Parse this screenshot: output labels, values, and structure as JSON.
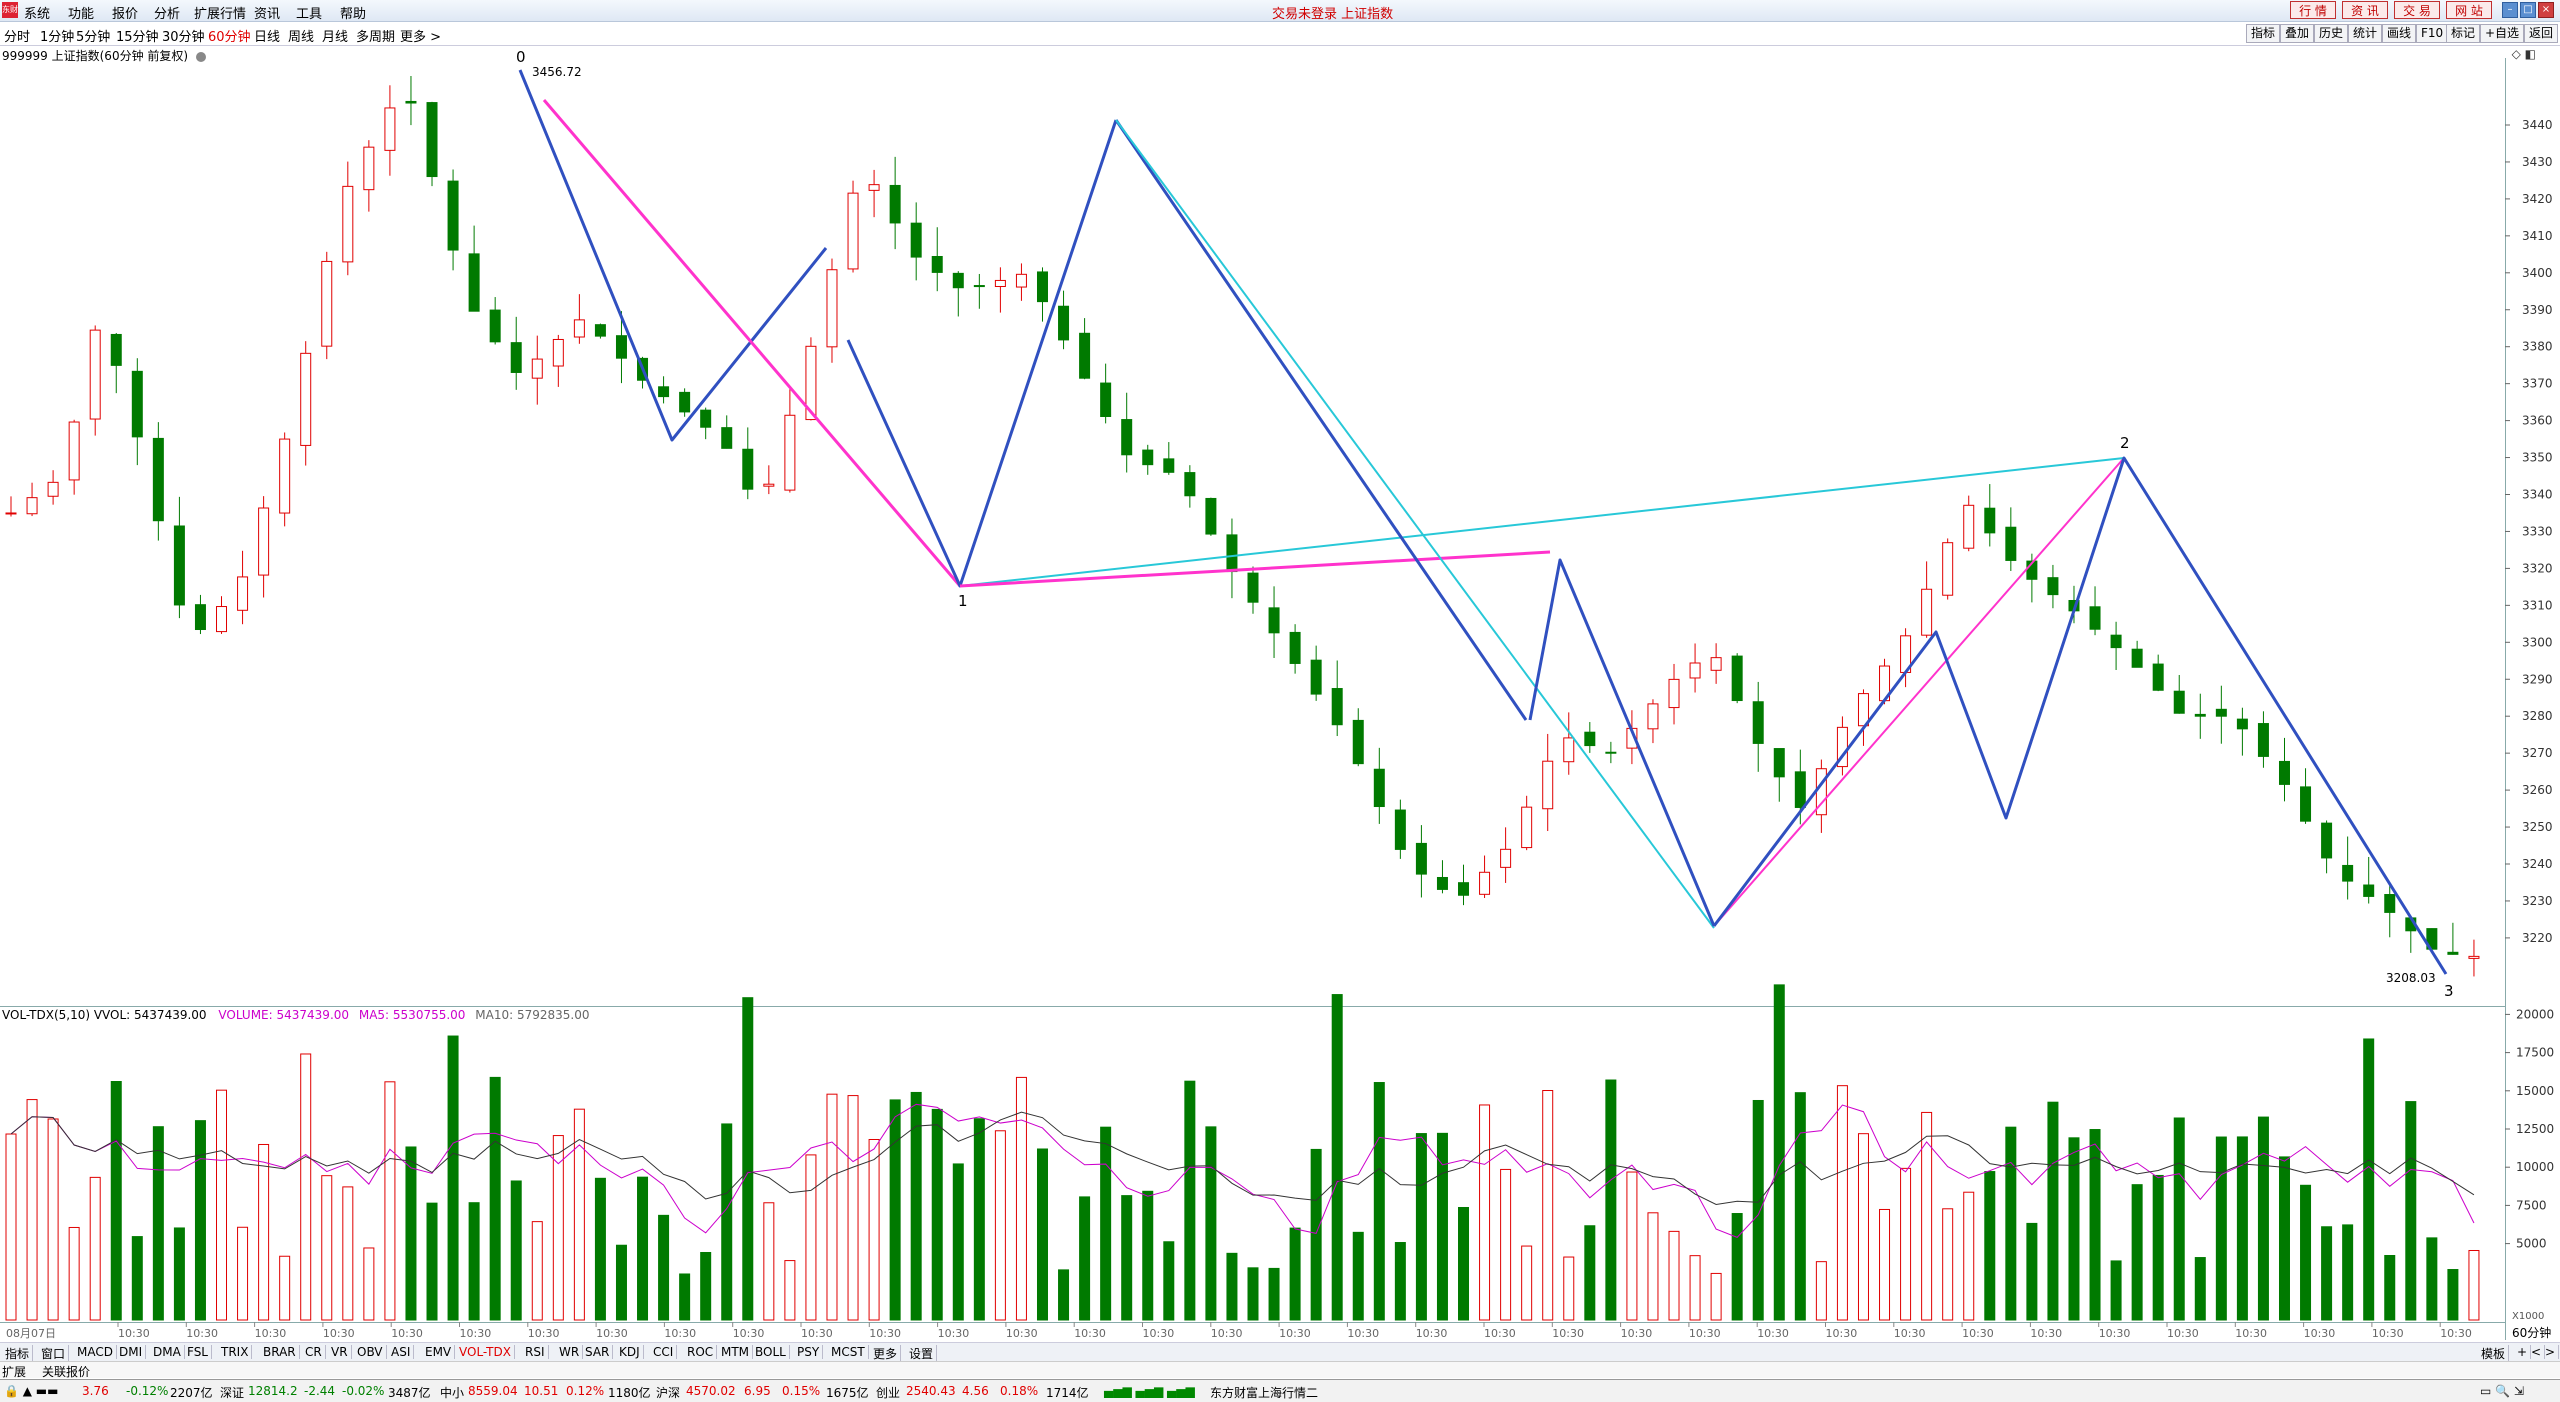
{
  "menu": {
    "logo": "东财",
    "items": [
      "系统",
      "功能",
      "报价",
      "分析",
      "扩展行情",
      "资讯",
      "工具",
      "帮助"
    ],
    "center_title": "交易未登录 上证指数",
    "right_buttons": [
      "行 情",
      "资 讯",
      "交 易",
      "网 站"
    ]
  },
  "periods": {
    "items": [
      "分时",
      "1分钟",
      "5分钟",
      "15分钟",
      "30分钟",
      "60分钟",
      "日线",
      "周线",
      "月线",
      "多周期",
      "更多 >"
    ],
    "active": "60分钟",
    "tools": [
      "指标",
      "叠加",
      "历史",
      "统计",
      "画线",
      "F10",
      "标记",
      "+自选",
      "返回"
    ]
  },
  "chart": {
    "title": "999999 上证指数(60分钟 前复权)",
    "pane_icons": "◇ ◧",
    "price_labels": [
      "3440",
      "3430",
      "3420",
      "3410",
      "3400",
      "3390",
      "3380",
      "3370",
      "3360",
      "3350",
      "3340",
      "3330",
      "3320",
      "3310",
      "3300",
      "3290",
      "3280",
      "3270",
      "3260",
      "3250",
      "3240",
      "3230",
      "3220"
    ],
    "high_label": "3456.72",
    "low_label": "3208.03",
    "wave_labels": [
      "0",
      "1",
      "2",
      "3"
    ],
    "date_first": "08月07日",
    "time_tick": "10:30",
    "period_badge": "60分钟"
  },
  "volume": {
    "title": "VOL-TDX(5,10)  VVOL: 5437439.00",
    "volume_text": "VOLUME: 5437439.00",
    "ma5_text": "MA5: 5530755.00",
    "ma10_text": "MA10: 5792835.00",
    "axis_labels": [
      "20000",
      "17500",
      "15000",
      "12500",
      "10000",
      "7500",
      "5000"
    ],
    "unit": "X1000",
    "colors": {
      "up": "#e00000",
      "down": "#007a00",
      "ma5": "#cc00cc",
      "ma10": "#333333"
    }
  },
  "indicators": {
    "items": [
      "指标",
      "窗口",
      "MACD",
      "DMI",
      "DMA",
      "FSL",
      "TRIX",
      "BRAR",
      "CR",
      "VR",
      "OBV",
      "ASI",
      "EMV",
      "VOL-TDX",
      "RSI",
      "WR",
      "SAR",
      "KDJ",
      "CCI",
      "ROC",
      "MTM",
      "BOLL",
      "PSY",
      "MCST",
      "更多",
      "设置"
    ],
    "active": "VOL-TDX",
    "right": [
      "模板",
      "+",
      "<",
      ">"
    ]
  },
  "subtabs": [
    "扩展",
    "关联报价"
  ],
  "status": {
    "sh": {
      "value": "3.76",
      "chg": "-0.12%",
      "amt": "2207亿"
    },
    "sz": {
      "name": "深证",
      "value": "12814.2",
      "chg": "-2.44",
      "pct": "-0.02%",
      "amt": "3487亿"
    },
    "zx": {
      "name": "中小",
      "value": "8559.04",
      "chg": "10.51",
      "pct": "0.12%",
      "amt": "1180亿"
    },
    "hs": {
      "name": "沪深",
      "value": "4570.02",
      "chg": "6.95",
      "pct": "0.15%",
      "amt": "1675亿"
    },
    "cy": {
      "name": "创业",
      "value": "2540.43",
      "chg": "4.56",
      "pct": "0.18%",
      "amt": "1714亿"
    },
    "server": "东方财富上海行情二"
  }
}
